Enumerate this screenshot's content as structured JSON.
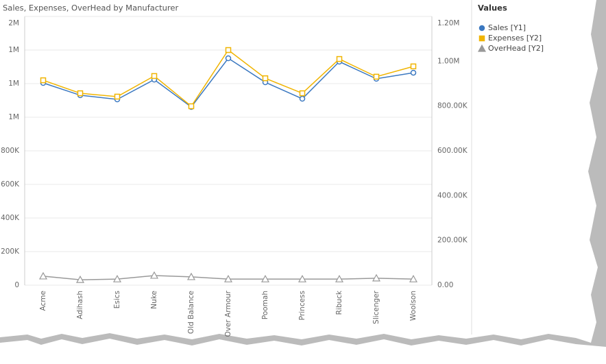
{
  "chart_data": {
    "type": "line",
    "title": "Sales, Expenses, OverHead by Manufacturer",
    "legend_title": "Values",
    "legend_position": "right",
    "grid": true,
    "categories": [
      "Acme",
      "Adihash",
      "Esics",
      "Nuke",
      "Old Balance",
      "Over Armour",
      "Poomah",
      "Princess",
      "Ribuck",
      "Slicenger",
      "Woolson"
    ],
    "ylim": [
      0,
      1600000
    ],
    "yticks": [
      0,
      {
        "value": 200000,
        "label": "200K"
      },
      {
        "value": 400000,
        "label": "400K"
      },
      {
        "value": 600000,
        "label": "600K"
      },
      {
        "value": 800000,
        "label": "800K"
      },
      {
        "value": 1000000,
        "label": "1M"
      },
      {
        "value": 1200000,
        "label": "1M"
      },
      {
        "value": 1400000,
        "label": "1M"
      },
      {
        "value": 1600000,
        "label": "2M"
      }
    ],
    "y2lim": [
      0,
      1200000
    ],
    "y2ticks": [
      {
        "value": 0,
        "label": "0.00"
      },
      {
        "value": 200000,
        "label": "200.00K"
      },
      {
        "value": 400000,
        "label": "400.00K"
      },
      {
        "value": 600000,
        "label": "600.00K"
      },
      {
        "value": 800000,
        "label": "800.00K"
      },
      {
        "value": 1000000,
        "label": "1.00M"
      },
      {
        "value": 1200000,
        "label": "1.20M"
      }
    ],
    "series": [
      {
        "name": "Sales [Y1]",
        "color": "#3b78c0",
        "marker": "circle",
        "values": [
          1204000,
          1131000,
          1106000,
          1224000,
          1061000,
          1351000,
          1208000,
          1110000,
          1331000,
          1229000,
          1265000
        ]
      },
      {
        "name": "Expenses [Y2]",
        "color": "#f0b400",
        "marker": "square",
        "axis": "y2",
        "values": [
          915000,
          857000,
          842000,
          934000,
          799000,
          1050000,
          924000,
          857000,
          1010000,
          931000,
          977000
        ]
      },
      {
        "name": "OverHead [Y2]",
        "color": "#999999",
        "marker": "triangle",
        "axis": "y2",
        "values": [
          40000,
          24000,
          27000,
          43000,
          37000,
          27000,
          27000,
          27000,
          27000,
          31000,
          27000
        ]
      }
    ]
  }
}
